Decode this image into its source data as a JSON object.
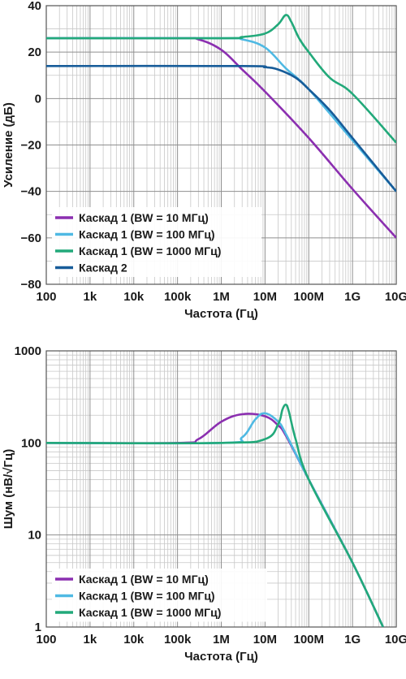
{
  "chart_data": [
    {
      "type": "line",
      "xscale": "log",
      "xlim": [
        100,
        10000000000
      ],
      "ylim": [
        -80,
        40
      ],
      "xlabel": "Частота (Гц)",
      "ylabel": "Усиление (дБ)",
      "xticks": [
        {
          "value": 100,
          "label": "100"
        },
        {
          "value": 1000,
          "label": "1k"
        },
        {
          "value": 10000,
          "label": "10k"
        },
        {
          "value": 100000,
          "label": "100k"
        },
        {
          "value": 1000000,
          "label": "1M"
        },
        {
          "value": 10000000,
          "label": "10M"
        },
        {
          "value": 100000000,
          "label": "100M"
        },
        {
          "value": 1000000000,
          "label": "1G"
        },
        {
          "value": 10000000000,
          "label": "10G"
        }
      ],
      "yticks": [
        {
          "value": 40,
          "label": "40"
        },
        {
          "value": 20,
          "label": "20"
        },
        {
          "value": 0,
          "label": "0"
        },
        {
          "value": -20,
          "label": "−20"
        },
        {
          "value": -40,
          "label": "−40"
        },
        {
          "value": -60,
          "label": "−60"
        },
        {
          "value": -80,
          "label": "−80"
        }
      ],
      "grid": true,
      "legend_position": "bottom-left",
      "series": [
        {
          "name": "Каскад 1 (BW = 10 МГц)",
          "color": "#8b2fb0",
          "x": [
            100,
            100000,
            300000,
            1000000,
            3000000,
            10000000,
            100000000,
            1000000000,
            10000000000
          ],
          "y": [
            26,
            26,
            25.5,
            21,
            12.5,
            3,
            -17,
            -39,
            -60
          ]
        },
        {
          "name": "Каскад 1 (BW = 100 МГц)",
          "color": "#4fb9e3",
          "x": [
            100,
            1000000,
            3000000,
            10000000,
            30000000,
            100000000,
            1000000000,
            10000000000
          ],
          "y": [
            26,
            26,
            25.5,
            22,
            13,
            4,
            -18,
            -40
          ]
        },
        {
          "name": "Каскад 1 (BW = 1000 МГц)",
          "color": "#22a97a",
          "x": [
            100,
            1000000,
            3000000,
            10000000,
            20000000,
            30000000,
            40000000,
            60000000,
            100000000,
            300000000,
            1000000000,
            10000000000
          ],
          "y": [
            26,
            26,
            26.5,
            28,
            32,
            36,
            33,
            26,
            20,
            9,
            2,
            -19
          ]
        },
        {
          "name": "Каскад 2",
          "color": "#175c99",
          "x": [
            100,
            3000000,
            10000000,
            20000000,
            50000000,
            100000000,
            300000000,
            1000000000,
            10000000000
          ],
          "y": [
            14,
            14,
            13.5,
            12.5,
            9,
            4,
            -5,
            -17,
            -40
          ]
        }
      ]
    },
    {
      "type": "line",
      "xscale": "log",
      "yscale": "log",
      "xlim": [
        100,
        10000000000
      ],
      "ylim": [
        1,
        1000
      ],
      "xlabel": "Частота (Гц)",
      "ylabel": "Шум (нВ/√Гц)",
      "xticks": [
        {
          "value": 100,
          "label": "100"
        },
        {
          "value": 1000,
          "label": "1k"
        },
        {
          "value": 10000,
          "label": "10k"
        },
        {
          "value": 100000,
          "label": "100k"
        },
        {
          "value": 1000000,
          "label": "1M"
        },
        {
          "value": 10000000,
          "label": "10M"
        },
        {
          "value": 100000000,
          "label": "100M"
        },
        {
          "value": 1000000000,
          "label": "1G"
        },
        {
          "value": 10000000000,
          "label": "10G"
        }
      ],
      "yticks": [
        {
          "value": 1000,
          "label": "1000"
        },
        {
          "value": 100,
          "label": "100"
        },
        {
          "value": 10,
          "label": "10"
        },
        {
          "value": 1,
          "label": "1"
        }
      ],
      "grid": true,
      "legend_position": "bottom-left",
      "series": [
        {
          "name": "Каскад 1 (BW = 10 МГц)",
          "color": "#8b2fb0",
          "x": [
            100,
            100000,
            300000,
            1000000,
            3000000,
            10000000,
            20000000,
            30000000,
            100000000,
            1000000000,
            5000000000
          ],
          "y": [
            100,
            100,
            110,
            170,
            205,
            195,
            155,
            120,
            40,
            5,
            1
          ]
        },
        {
          "name": "Каскад 1 (BW = 100 МГц)",
          "color": "#4fb9e3",
          "x": [
            100,
            1000000,
            3000000,
            6000000,
            10000000,
            20000000,
            30000000,
            100000000,
            1000000000,
            5000000000
          ],
          "y": [
            100,
            100,
            115,
            180,
            210,
            170,
            125,
            40,
            5,
            1
          ]
        },
        {
          "name": "Каскад 1 (BW = 1000 МГц)",
          "color": "#22a97a",
          "x": [
            100,
            1000000,
            10000000,
            20000000,
            25000000,
            30000000,
            35000000,
            50000000,
            100000000,
            1000000000,
            5000000000
          ],
          "y": [
            100,
            100,
            110,
            160,
            230,
            260,
            220,
            110,
            40,
            5,
            1
          ]
        }
      ]
    }
  ]
}
